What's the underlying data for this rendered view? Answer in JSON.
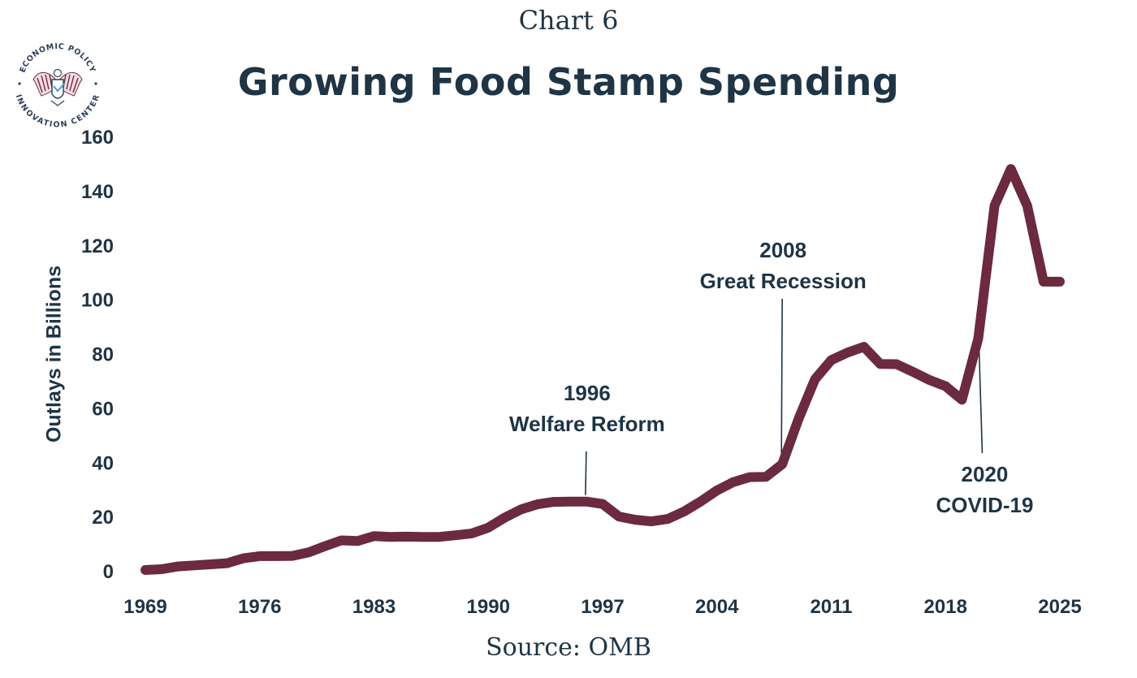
{
  "header": {
    "chart_number": "Chart 6",
    "title": "Growing Food Stamp Spending"
  },
  "logo": {
    "text_top": "ECONOMIC POLICY",
    "text_bottom": "INNOVATION CENTER",
    "icon": "eagle-seal-icon",
    "colors": {
      "accent": "#6b2a3d",
      "navy": "#2c3e57"
    }
  },
  "footer": {
    "source": "Source: OMB"
  },
  "chart_data": {
    "type": "line",
    "title": "Growing Food Stamp Spending",
    "xlabel": "",
    "ylabel": "Outlays in Billions",
    "xlim": [
      1969,
      2025
    ],
    "ylim": [
      0,
      160
    ],
    "x_ticks": [
      1969,
      1976,
      1983,
      1990,
      1997,
      2004,
      2011,
      2018,
      2025
    ],
    "y_ticks": [
      0,
      20,
      40,
      60,
      80,
      100,
      120,
      140,
      160
    ],
    "grid": false,
    "legend": "none",
    "line_color": "#6b2a3d",
    "series": [
      {
        "x": [
          1969,
          1970,
          1971,
          1972,
          1973,
          1974,
          1975,
          1976,
          1977,
          1978,
          1979,
          1980,
          1981,
          1982,
          1983,
          1984,
          1985,
          1986,
          1987,
          1988,
          1989,
          1990,
          1991,
          1992,
          1993,
          1994,
          1995,
          1996,
          1997,
          1998,
          1999,
          2000,
          2001,
          2002,
          2003,
          2004,
          2005,
          2006,
          2007,
          2008,
          2009,
          2010,
          2011,
          2012,
          2013,
          2014,
          2015,
          2016,
          2017,
          2018,
          2019,
          2020,
          2021,
          2022,
          2023,
          2024,
          2025
        ],
        "values": [
          0.3,
          0.6,
          1.6,
          2.0,
          2.4,
          2.8,
          4.6,
          5.4,
          5.4,
          5.5,
          6.8,
          9.1,
          11.2,
          11.0,
          12.8,
          12.5,
          12.6,
          12.5,
          12.5,
          13.1,
          13.8,
          15.9,
          19.6,
          22.6,
          24.5,
          25.4,
          25.5,
          25.5,
          24.6,
          20.0,
          18.8,
          18.2,
          19.1,
          21.9,
          25.5,
          29.6,
          32.7,
          34.5,
          34.6,
          39.3,
          56.0,
          70.5,
          77.6,
          80.4,
          82.5,
          76.2,
          76.1,
          73.3,
          70.3,
          68.0,
          63.0,
          85.5,
          134.5,
          148.0,
          134.5,
          106.5,
          106.5
        ]
      }
    ],
    "annotations": [
      {
        "year_label": "1996",
        "event_label": "Welfare Reform",
        "x": 1996
      },
      {
        "year_label": "2008",
        "event_label": "Great Recession",
        "x": 2008
      },
      {
        "year_label": "2020",
        "event_label": "COVID-19",
        "x": 2020
      }
    ]
  }
}
